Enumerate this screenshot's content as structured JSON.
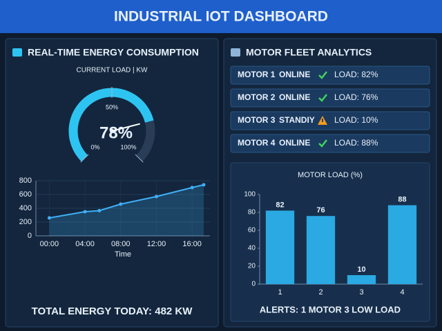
{
  "header": {
    "title": "INDUSTRIAL IOT DASHBOARD"
  },
  "energy": {
    "title": "REAL-TIME ENERGY CONSUMPTION",
    "total": "TOTAL ENERGY TODAY: 482 KW"
  },
  "motors": {
    "title": "MOTOR FLEET ANALYTICS",
    "rows": [
      {
        "name": "MOTOR 1",
        "status": "ONLINE",
        "icon": "check",
        "load": "LOAD: 82%"
      },
      {
        "name": "MOTOR 2",
        "status": "ONLINE",
        "icon": "check",
        "load": "LOAD: 76%"
      },
      {
        "name": "MOTOR 3",
        "status": "STANDIY",
        "icon": "warning",
        "load": "LOAD: 10%"
      },
      {
        "name": "MOTOR 4",
        "status": "ONLINE",
        "icon": "check",
        "load": "LOAD: 88%"
      }
    ],
    "alerts": "ALERTS: 1 MOTOR 3 LOW LOAD"
  },
  "chart_data": [
    {
      "type": "gauge",
      "title": "CURRENT LOAD | KW",
      "value": 78,
      "value_label": "78%",
      "lim": [
        0,
        100
      ],
      "ticks": [
        {
          "value": 0,
          "label": "0%"
        },
        {
          "value": 50,
          "label": "50%"
        },
        {
          "value": 100,
          "label": "100%"
        }
      ],
      "color": "#2ec4f2"
    },
    {
      "type": "line",
      "x": [
        0,
        4,
        5.6,
        8,
        12,
        16,
        17.3
      ],
      "values": [
        260,
        350,
        365,
        460,
        570,
        700,
        740
      ],
      "xlim": [
        -1.5,
        18
      ],
      "ylim": [
        0,
        800
      ],
      "yticks": [
        0,
        200,
        400,
        600,
        800
      ],
      "xticks": [
        {
          "value": 0,
          "label": "00:00"
        },
        {
          "value": 4,
          "label": "04:00"
        },
        {
          "value": 8,
          "label": "08:00"
        },
        {
          "value": 12,
          "label": "12:00"
        },
        {
          "value": 16,
          "label": "16:00"
        }
      ],
      "xlabel": "Time",
      "color": "#3fb0f7",
      "grid": true
    },
    {
      "type": "bar",
      "title": "MOTOR LOAD (%)",
      "categories": [
        "1",
        "2",
        "3",
        "4"
      ],
      "values": [
        82,
        76,
        10,
        88
      ],
      "ylim": [
        0,
        100
      ],
      "yticks": [
        0,
        20,
        40,
        60,
        80,
        100
      ],
      "color": "#2aa9e2"
    }
  ]
}
